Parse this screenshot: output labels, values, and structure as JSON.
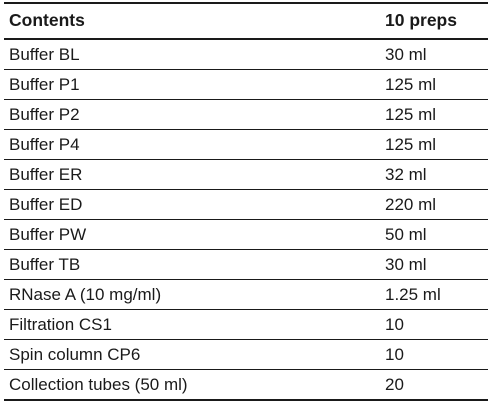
{
  "table": {
    "headers": [
      "Contents",
      "10 preps"
    ],
    "rows": [
      {
        "item": "Buffer BL",
        "qty": "30 ml"
      },
      {
        "item": "Buffer P1",
        "qty": "125 ml"
      },
      {
        "item": "Buffer P2",
        "qty": "125 ml"
      },
      {
        "item": "Buffer P4",
        "qty": "125 ml"
      },
      {
        "item": "Buffer ER",
        "qty": "32 ml"
      },
      {
        "item": "Buffer ED",
        "qty": "220 ml"
      },
      {
        "item": "Buffer PW",
        "qty": "50 ml"
      },
      {
        "item": "Buffer TB",
        "qty": "30 ml"
      },
      {
        "item": "RNase A (10 mg/ml)",
        "qty": "1.25 ml"
      },
      {
        "item": "Filtration CS1",
        "qty": "10"
      },
      {
        "item": "Spin column CP6",
        "qty": "10"
      },
      {
        "item": "Collection tubes (50 ml)",
        "qty": "20"
      }
    ]
  }
}
